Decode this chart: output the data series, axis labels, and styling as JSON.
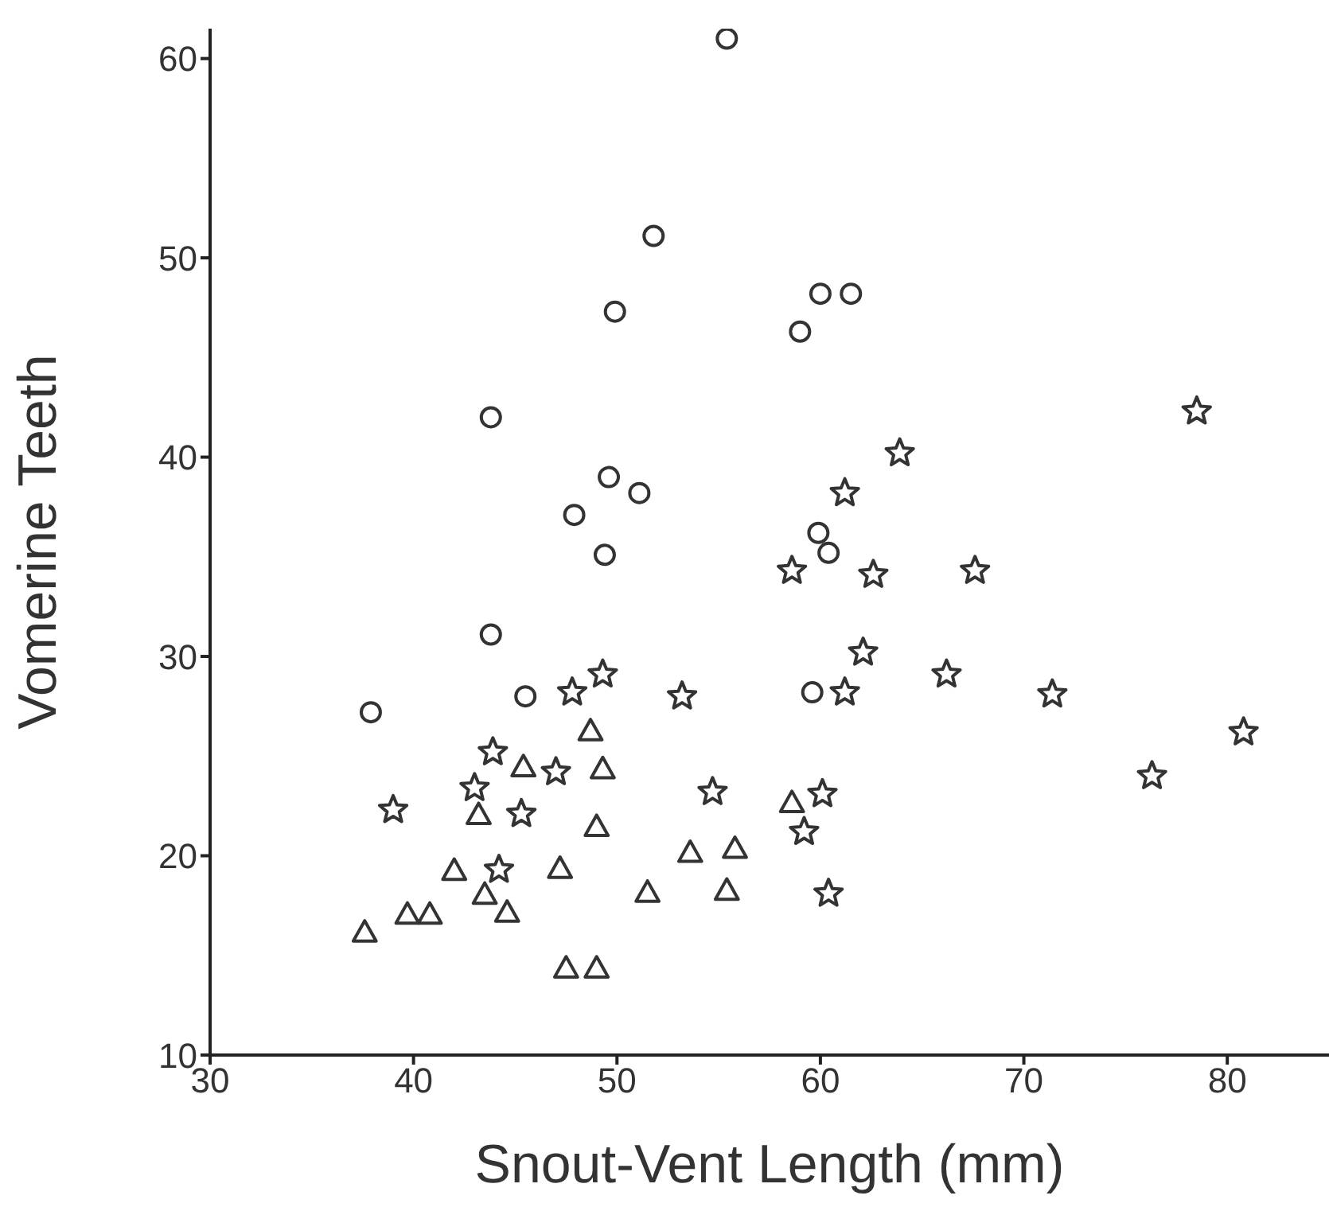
{
  "chart_data": {
    "type": "scatter",
    "xlabel": "Snout-Vent Length (mm)",
    "ylabel": "Vomerine Teeth",
    "xlim": [
      30,
      85
    ],
    "xticks": [
      30,
      40,
      50,
      60,
      70,
      80
    ],
    "ylim": [
      10,
      61.5
    ],
    "yticks": [
      10,
      20,
      30,
      40,
      50,
      60
    ],
    "grid": false,
    "legend": false,
    "series": [
      {
        "color": "#333333",
        "marker": "circle",
        "x": [
          37.9,
          43.8,
          43.8,
          45.5,
          47.9,
          49.4,
          49.6,
          49.9,
          51.1,
          51.8,
          55.4,
          59.0,
          59.6,
          59.9,
          60.4,
          60.0,
          61.5
        ],
        "values": [
          27.2,
          31.1,
          42.0,
          28.0,
          37.1,
          35.1,
          39.0,
          47.3,
          38.2,
          51.1,
          61.0,
          46.3,
          28.2,
          36.2,
          35.2,
          48.2,
          48.2
        ]
      },
      {
        "color": "#333333",
        "marker": "star",
        "x": [
          78.5,
          63.9,
          61.2,
          58.6,
          62.6,
          67.6,
          62.1,
          66.2,
          53.2,
          61.2,
          71.4,
          80.8,
          76.3,
          47.8,
          49.3,
          43.9,
          47.0,
          43.0,
          39.0,
          45.3,
          54.7,
          60.1,
          59.2,
          44.2,
          60.4
        ],
        "values": [
          42.3,
          40.2,
          38.2,
          34.3,
          34.1,
          34.3,
          30.2,
          29.1,
          28.0,
          28.2,
          28.1,
          26.2,
          24.0,
          28.2,
          29.1,
          25.2,
          24.2,
          23.4,
          22.3,
          22.1,
          23.2,
          23.1,
          21.2,
          19.3,
          18.1
        ]
      },
      {
        "color": "#333333",
        "marker": "triangle",
        "x": [
          48.7,
          45.4,
          49.3,
          43.2,
          49.0,
          58.6,
          42.0,
          47.2,
          53.6,
          55.8,
          43.5,
          44.6,
          51.5,
          55.4,
          39.7,
          40.8,
          37.6,
          47.5,
          49.0
        ],
        "values": [
          26.2,
          24.4,
          24.3,
          22.0,
          21.4,
          22.6,
          19.2,
          19.3,
          20.1,
          20.3,
          18.0,
          17.1,
          18.1,
          18.2,
          17.0,
          17.0,
          16.1,
          14.3,
          14.3
        ]
      }
    ]
  }
}
